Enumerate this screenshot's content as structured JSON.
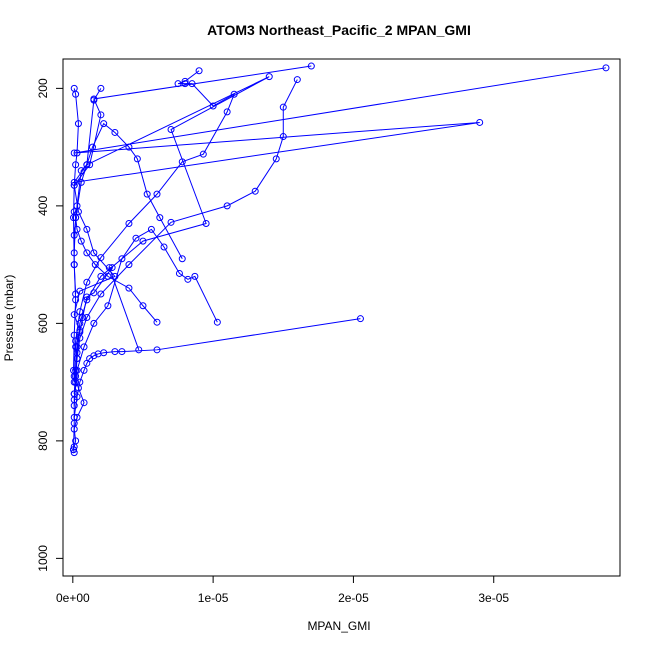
{
  "chart_data": {
    "type": "line",
    "title": "ATOM3 Northeast_Pacific_2 MPAN_GMI",
    "xlabel": "MPAN_GMI",
    "ylabel": "Pressure (mbar)",
    "xlim": [
      -7e-07,
      3.9e-05
    ],
    "ylim": [
      1030,
      150
    ],
    "y_reversed": true,
    "x_ticks": [
      0,
      1e-05,
      2e-05,
      3e-05
    ],
    "x_tick_labels": [
      "0e+00",
      "1e-05",
      "2e-05",
      "3e-05"
    ],
    "y_ticks": [
      200,
      400,
      600,
      800,
      1000
    ],
    "y_tick_labels": [
      "200",
      "400",
      "600",
      "800",
      "1000"
    ],
    "grid": false,
    "legend": "none",
    "marker": "open-circle",
    "color": "#0000ff",
    "series": [
      {
        "x": [
          1.7e-05,
          1.5e-06,
          2e-06,
          1.2e-06,
          1e-07,
          4e-07,
          1e-06,
          1.5e-06,
          3e-06,
          5e-07,
          1e-07,
          5e-07,
          2e-07,
          3e-07,
          1e-07,
          4e-07,
          8e-07,
          3e-07,
          1e-07,
          2e-07,
          1e-07,
          5e-08,
          1e-07
        ],
        "y": [
          162,
          218,
          245,
          330,
          365,
          410,
          440,
          480,
          520,
          545,
          585,
          612,
          640,
          660,
          690,
          710,
          735,
          760,
          780,
          800,
          810,
          815,
          820
        ]
      },
      {
        "x": [
          3.8e-05,
          1e-07,
          2.9e-05,
          1e-07,
          1e-06,
          1.4e-05,
          7e-06,
          9.5e-06,
          5e-06,
          2e-06,
          1e-06,
          5e-07,
          3e-07,
          2e-07,
          1e-07,
          1e-07,
          5e-08
        ],
        "y": [
          165,
          310,
          258,
          360,
          330,
          180,
          270,
          430,
          460,
          520,
          560,
          600,
          650,
          690,
          730,
          770,
          815
        ]
      },
      {
        "x": [
          1.6e-05,
          1.5e-05,
          1.5e-05,
          1.45e-05,
          1.3e-05,
          1.1e-05,
          7e-06,
          4e-06,
          2e-06,
          1e-06,
          5e-07,
          3e-07,
          2e-07,
          1e-07
        ],
        "y": [
          185,
          232,
          282,
          320,
          375,
          400,
          428,
          500,
          550,
          590,
          625,
          660,
          700,
          740
        ]
      },
      {
        "x": [
          9e-06,
          8e-06,
          7.5e-06,
          8e-06,
          8.5e-06,
          1e-05,
          1.15e-05,
          1.1e-05,
          9.3e-06,
          7.8e-06,
          6e-06,
          4e-06,
          2e-06,
          1e-06,
          5e-07,
          2e-07,
          1e-07
        ],
        "y": [
          170,
          188,
          192,
          192,
          192,
          230,
          210,
          240,
          312,
          325,
          380,
          430,
          488,
          530,
          580,
          630,
          700
        ]
      },
      {
        "x": [
          2.05e-05,
          6e-06,
          3.5e-06,
          3e-06,
          2.2e-06,
          1.8e-06,
          1.5e-06,
          1.2e-06,
          1e-06,
          8e-07,
          5e-07,
          3e-07,
          1e-07
        ],
        "y": [
          592,
          645,
          648,
          648,
          650,
          652,
          655,
          660,
          668,
          680,
          700,
          725,
          760
        ]
      },
      {
        "x": [
          4.7e-06,
          2.6e-06,
          2.8e-06,
          1.5e-06,
          1e-06,
          7e-07,
          5e-07,
          3e-07,
          2e-07,
          1e-07
        ],
        "y": [
          645,
          505,
          505,
          548,
          555,
          590,
          615,
          640,
          680,
          720
        ]
      },
      {
        "x": [
          1.03e-05,
          8.7e-06,
          8.2e-06,
          7.6e-06,
          6.5e-06,
          5.6e-06,
          4.5e-06,
          3.5e-06,
          2.5e-06,
          1.5e-06,
          8e-07,
          3e-07,
          1e-07
        ],
        "y": [
          598,
          520,
          525,
          515,
          470,
          440,
          455,
          490,
          570,
          600,
          640,
          680,
          720
        ]
      },
      {
        "x": [
          7.8e-06,
          6.2e-06,
          5.3e-06,
          4.6e-06,
          4e-06,
          3e-06,
          2.2e-06,
          1.4e-06,
          6e-07,
          2e-07,
          1e-07
        ],
        "y": [
          490,
          420,
          380,
          320,
          300,
          275,
          260,
          300,
          360,
          420,
          480
        ]
      },
      {
        "x": [
          2e-06,
          1.5e-06,
          1e-06,
          6e-07,
          3e-07,
          1e-07,
          1e-07,
          2e-07
        ],
        "y": [
          200,
          220,
          330,
          340,
          400,
          450,
          500,
          550
        ]
      },
      {
        "x": [
          6e-06,
          5e-06,
          4e-06,
          2.5e-06,
          1.6e-06,
          1e-06,
          6e-07,
          3e-07,
          2e-07,
          1e-07
        ],
        "y": [
          598,
          570,
          540,
          520,
          500,
          480,
          460,
          440,
          420,
          410
        ]
      },
      {
        "x": [
          1e-07,
          2e-07,
          4e-07,
          3e-07,
          2e-07,
          1e-07,
          5e-08,
          1e-07,
          2e-07,
          1e-07,
          5e-08
        ],
        "y": [
          200,
          210,
          260,
          310,
          330,
          365,
          420,
          500,
          560,
          620,
          680
        ]
      }
    ]
  }
}
